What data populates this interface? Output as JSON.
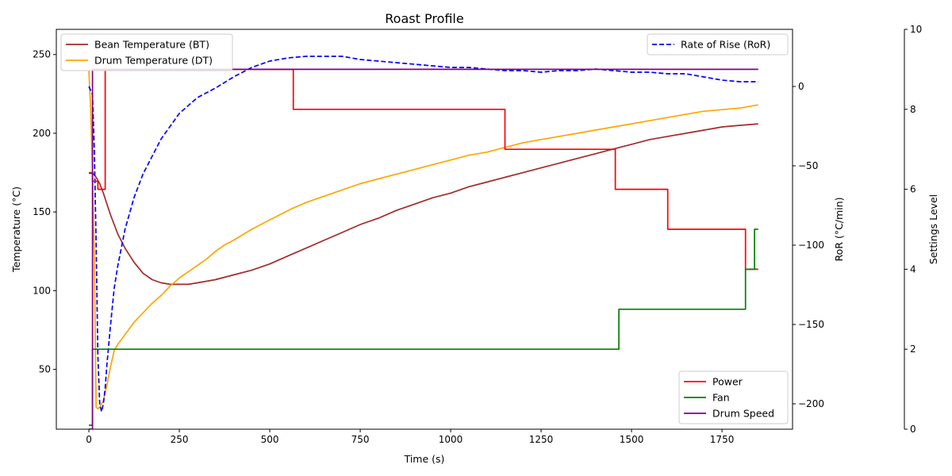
{
  "chart_data": {
    "type": "line",
    "title": "Roast Profile",
    "xlabel": "Time (s)",
    "xlim": [
      -90,
      1945
    ],
    "xticks": [
      0,
      250,
      500,
      750,
      1000,
      1250,
      1500,
      1750
    ],
    "axes": {
      "temperature": {
        "label": "Temperature (°C)",
        "ylim": [
          12,
          266
        ],
        "ticks": [
          50,
          100,
          150,
          200,
          250
        ]
      },
      "ror": {
        "label": "RoR (°C/min)",
        "ylim": [
          -216,
          36
        ],
        "ticks": [
          -200,
          -150,
          -100,
          -50,
          0
        ]
      },
      "settings": {
        "label": "Settings Level",
        "ylim": [
          0,
          10
        ],
        "ticks": [
          0,
          2,
          4,
          6,
          8,
          10
        ]
      }
    },
    "legends": {
      "upper_left": [
        "Bean Temperature (BT)",
        "Drum Temperature (DT)"
      ],
      "upper_right": [
        "Rate of Rise (RoR)"
      ],
      "lower_right": [
        "Power",
        "Fan",
        "Drum Speed"
      ]
    },
    "series": [
      {
        "name": "Bean Temperature (BT)",
        "axis": "temperature",
        "color": "#a52a2a",
        "style": "solid",
        "x": [
          0,
          10,
          20,
          30,
          40,
          50,
          60,
          80,
          100,
          125,
          150,
          175,
          200,
          225,
          250,
          275,
          300,
          350,
          400,
          450,
          500,
          560,
          600,
          650,
          700,
          750,
          800,
          850,
          900,
          950,
          1000,
          1050,
          1100,
          1150,
          1200,
          1250,
          1300,
          1350,
          1400,
          1450,
          1500,
          1550,
          1600,
          1650,
          1700,
          1750,
          1800,
          1850
        ],
        "y": [
          175,
          175,
          172,
          168,
          162,
          155,
          148,
          136,
          127,
          118,
          111,
          107,
          105,
          104,
          104,
          104,
          105,
          107,
          110,
          113,
          117,
          123,
          127,
          132,
          137,
          142,
          146,
          151,
          155,
          159,
          162,
          166,
          169,
          172,
          175,
          178,
          181,
          184,
          187,
          190,
          193,
          196,
          198,
          200,
          202,
          204,
          205,
          206
        ]
      },
      {
        "name": "Drum Temperature (DT)",
        "axis": "temperature",
        "color": "#ffa500",
        "style": "solid",
        "x": [
          0,
          5,
          10,
          15,
          20,
          25,
          30,
          40,
          50,
          60,
          70,
          80,
          100,
          125,
          150,
          175,
          200,
          225,
          250,
          275,
          300,
          325,
          350,
          375,
          400,
          450,
          500,
          560,
          600,
          650,
          700,
          750,
          800,
          850,
          900,
          950,
          1000,
          1050,
          1100,
          1150,
          1200,
          1250,
          1300,
          1350,
          1400,
          1450,
          1500,
          1550,
          1600,
          1650,
          1700,
          1750,
          1800,
          1850
        ],
        "y": [
          240,
          215,
          175,
          120,
          26,
          25,
          26,
          30,
          40,
          52,
          62,
          66,
          72,
          80,
          86,
          92,
          97,
          103,
          108,
          112,
          116,
          120,
          125,
          129,
          132,
          139,
          145,
          152,
          156,
          160,
          164,
          168,
          171,
          174,
          177,
          180,
          183,
          186,
          188,
          191,
          194,
          196,
          198,
          200,
          202,
          204,
          206,
          208,
          210,
          212,
          214,
          215,
          216,
          218
        ]
      },
      {
        "name": "Rate of Rise (RoR)",
        "axis": "ror",
        "color": "#0000ff",
        "style": "dashed",
        "x": [
          0,
          10,
          15,
          20,
          25,
          30,
          35,
          40,
          45,
          50,
          60,
          70,
          80,
          100,
          125,
          150,
          175,
          200,
          225,
          250,
          275,
          300,
          350,
          400,
          450,
          500,
          550,
          600,
          650,
          700,
          750,
          800,
          850,
          900,
          950,
          1000,
          1050,
          1100,
          1150,
          1200,
          1250,
          1300,
          1350,
          1400,
          1450,
          1500,
          1550,
          1600,
          1650,
          1700,
          1750,
          1800,
          1850
        ],
        "y": [
          0,
          -5,
          -40,
          -100,
          -170,
          -200,
          -205,
          -200,
          -190,
          -175,
          -150,
          -127,
          -113,
          -90,
          -70,
          -55,
          -44,
          -33,
          -25,
          -17,
          -12,
          -7,
          -1,
          6,
          12,
          16,
          18,
          19,
          19,
          19,
          17,
          16,
          15,
          14,
          13,
          12,
          12,
          11,
          10,
          10,
          9,
          10,
          10,
          11,
          10,
          9,
          9,
          8,
          8,
          6,
          4,
          3,
          3
        ]
      },
      {
        "name": "Power",
        "axis": "settings",
        "color": "#ff0000",
        "style": "step",
        "x": [
          0,
          10,
          10,
          25,
          25,
          45,
          45,
          565,
          565,
          1150,
          1150,
          1455,
          1455,
          1600,
          1600,
          1815,
          1815,
          1850
        ],
        "y": [
          6.4,
          6.4,
          6.2,
          6.2,
          6.0,
          6.0,
          9.0,
          9.0,
          8.0,
          8.0,
          7.0,
          7.0,
          6.0,
          6.0,
          5.0,
          5.0,
          4.0,
          4.0
        ]
      },
      {
        "name": "Fan",
        "axis": "settings",
        "color": "#008000",
        "style": "step",
        "x": [
          0,
          10,
          10,
          1465,
          1465,
          1815,
          1815,
          1840,
          1840,
          1850
        ],
        "y": [
          0.1,
          0.1,
          2.0,
          2.0,
          3.0,
          3.0,
          4.0,
          4.0,
          5.0,
          5.0
        ]
      },
      {
        "name": "Drum Speed",
        "axis": "settings",
        "color": "#800080",
        "style": "step",
        "x": [
          0,
          10,
          10,
          1850
        ],
        "y": [
          0.0,
          0.0,
          9.0,
          9.0
        ]
      }
    ]
  }
}
